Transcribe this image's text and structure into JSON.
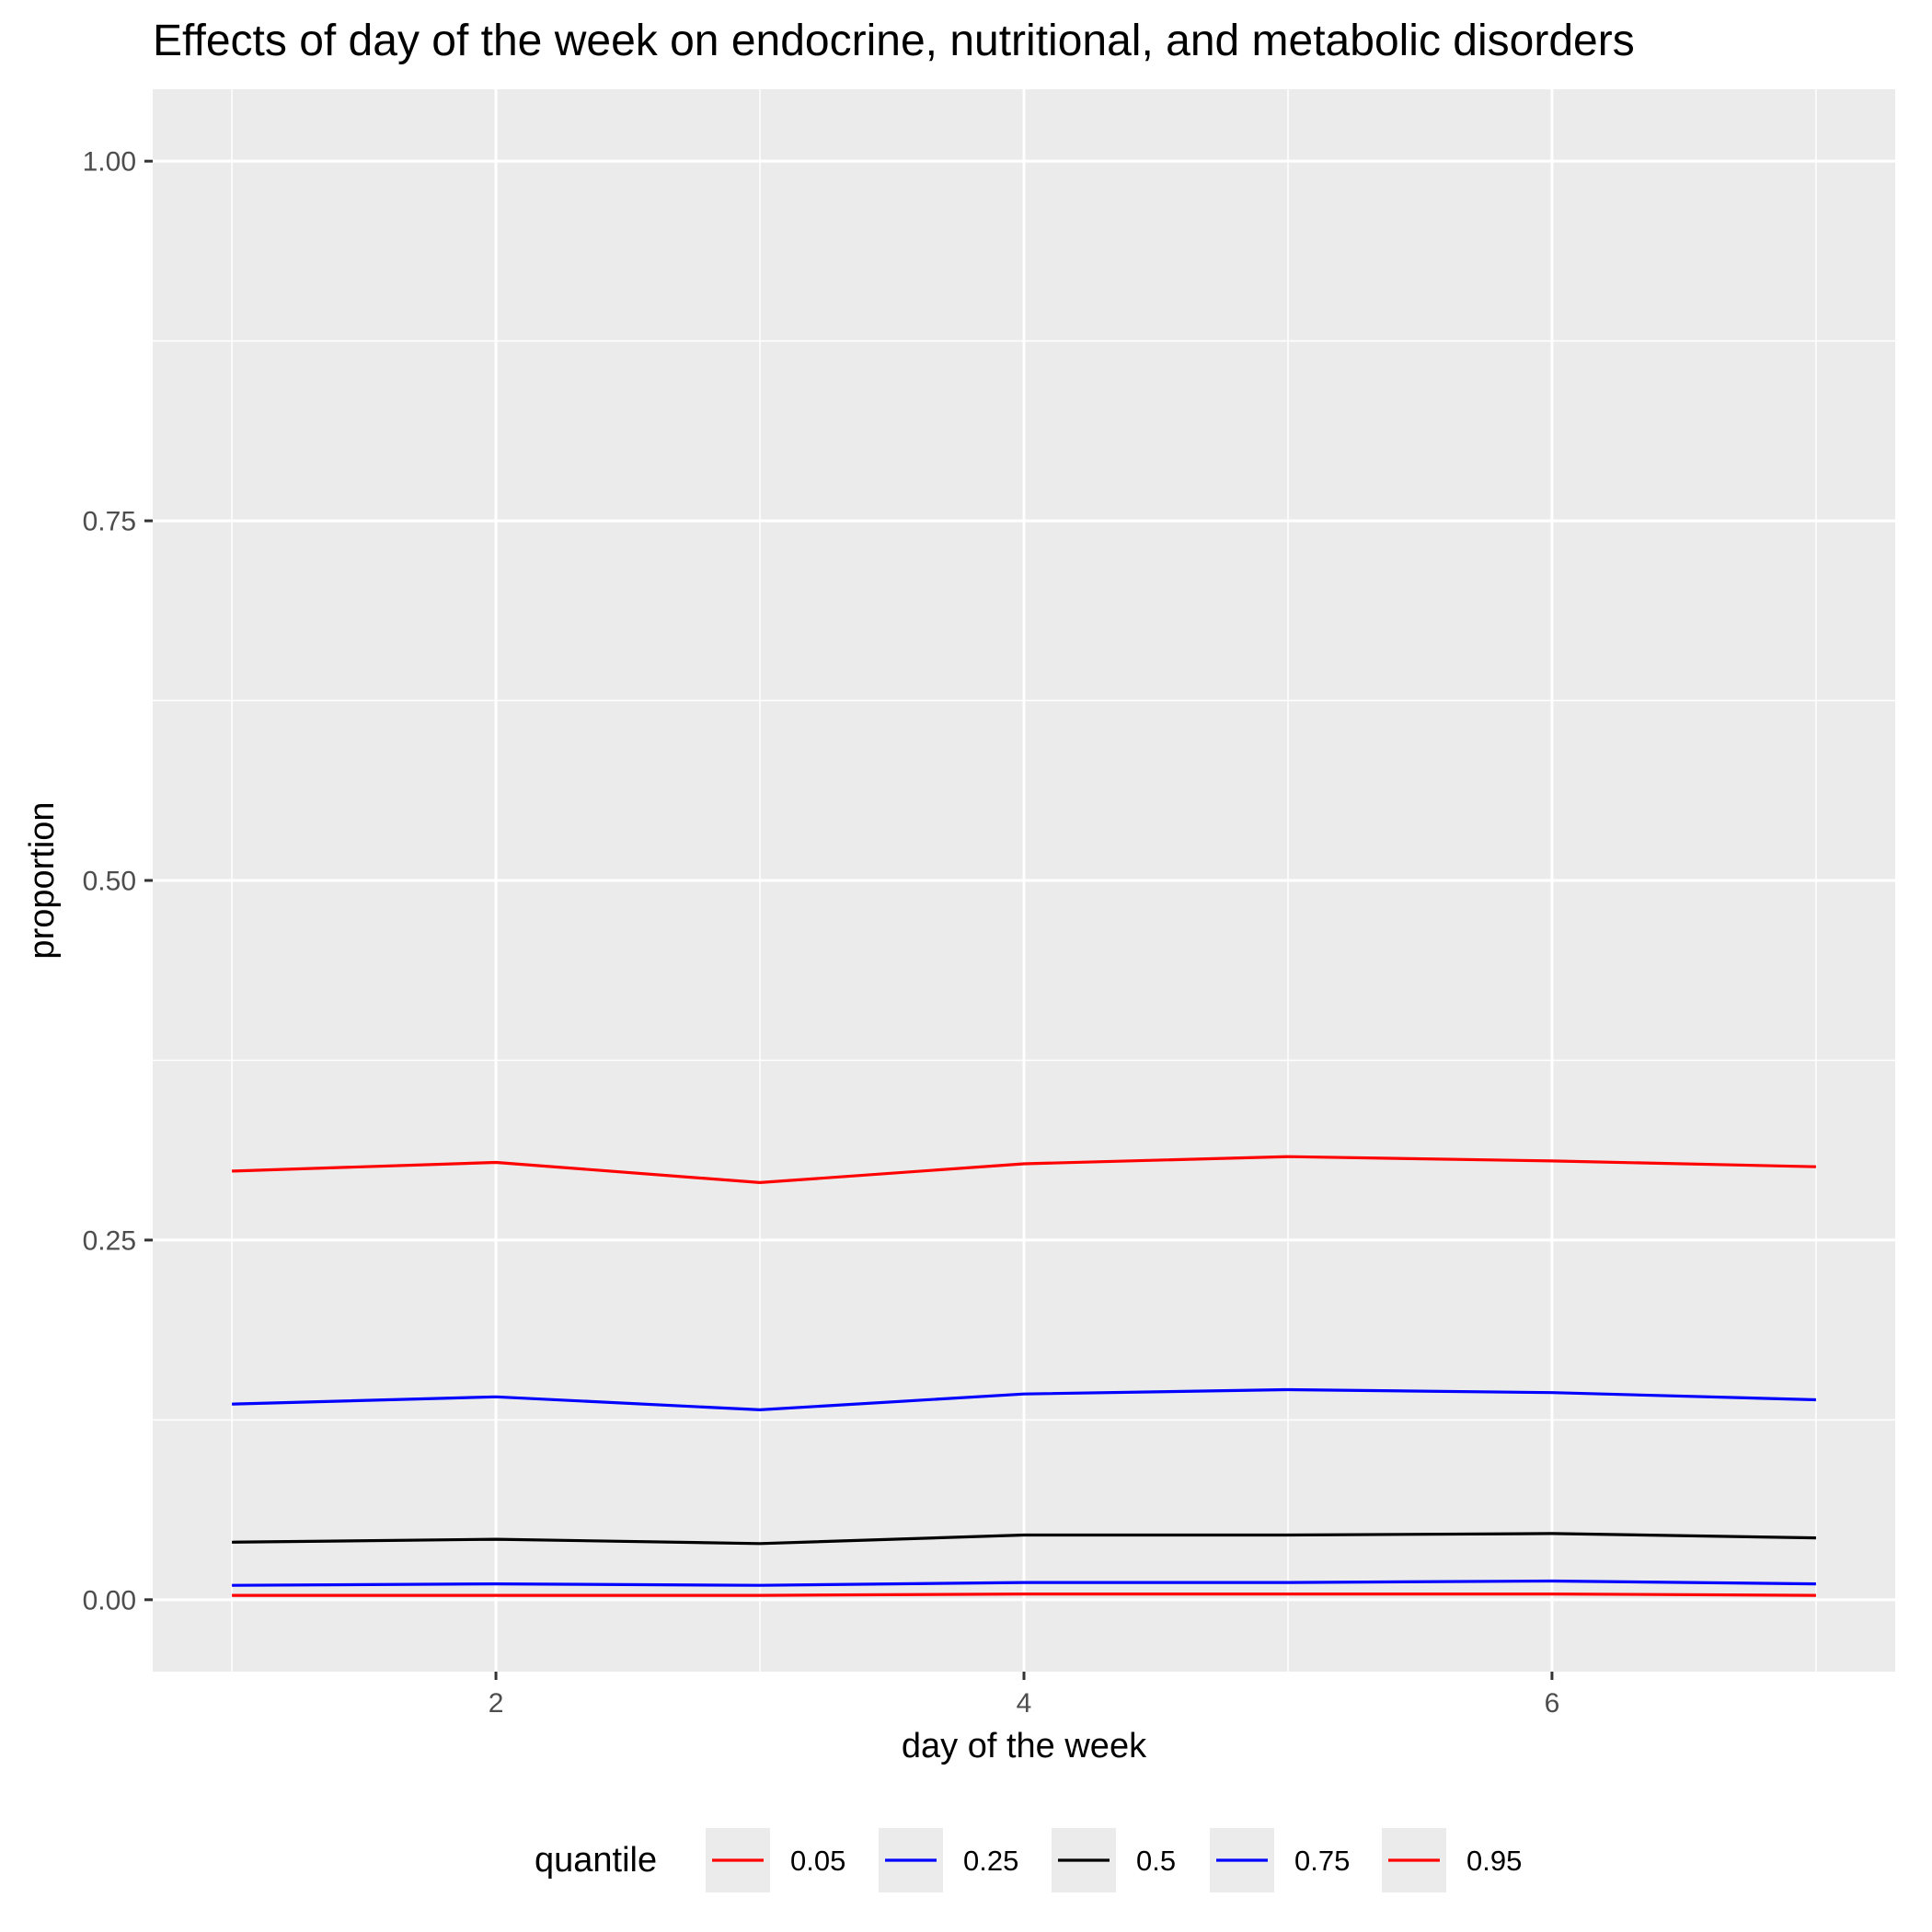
{
  "chart_data": {
    "type": "line",
    "title": "Effects of day of the week on endocrine, nutritional, and metabolic disorders",
    "xlabel": "day of the week",
    "ylabel": "proportion",
    "x": [
      1,
      2,
      3,
      4,
      5,
      6,
      7
    ],
    "xlim": [
      0.7,
      7.3
    ],
    "ylim": [
      -0.05,
      1.05
    ],
    "xticks": [
      2,
      4,
      6
    ],
    "xtick_labels": [
      "2",
      "4",
      "6"
    ],
    "yticks": [
      0,
      0.25,
      0.5,
      0.75,
      1
    ],
    "ytick_labels": [
      "0.00",
      "0.25",
      "0.50",
      "0.75",
      "1.00"
    ],
    "grid": true,
    "legend": {
      "title": "quantile",
      "position": "bottom"
    },
    "series": [
      {
        "name": "0.05",
        "color": "#ff0000",
        "values": [
          0.003,
          0.003,
          0.003,
          0.004,
          0.004,
          0.004,
          0.003
        ]
      },
      {
        "name": "0.25",
        "color": "#0000ff",
        "values": [
          0.01,
          0.011,
          0.01,
          0.012,
          0.012,
          0.013,
          0.011
        ]
      },
      {
        "name": "0.5",
        "color": "#000000",
        "values": [
          0.04,
          0.042,
          0.039,
          0.045,
          0.045,
          0.046,
          0.043
        ]
      },
      {
        "name": "0.75",
        "color": "#0000ff",
        "values": [
          0.136,
          0.141,
          0.132,
          0.143,
          0.146,
          0.144,
          0.139
        ]
      },
      {
        "name": "0.95",
        "color": "#ff0000",
        "values": [
          0.298,
          0.304,
          0.29,
          0.303,
          0.308,
          0.305,
          0.301
        ]
      }
    ]
  }
}
